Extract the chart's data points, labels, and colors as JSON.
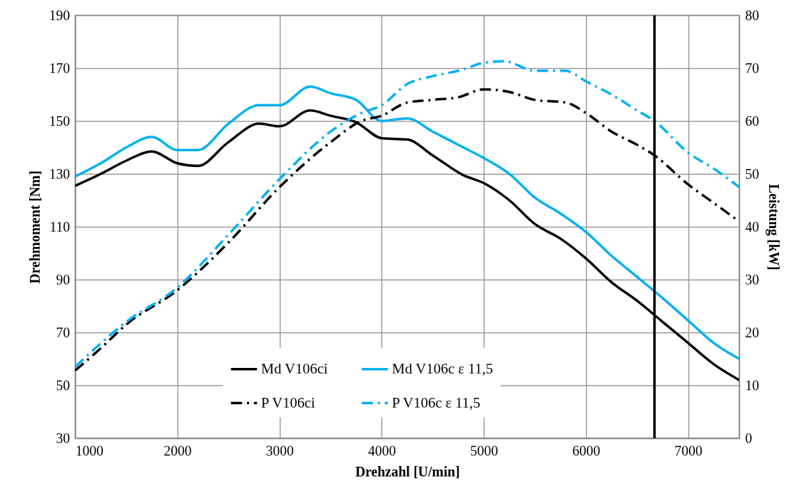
{
  "chart_data": {
    "type": "line",
    "xlabel": "Drehzahl [U/min]",
    "ylabel": "Drehmoment [Nm]",
    "y2label": "Leistung [kW]",
    "x": [
      1000,
      1250,
      1500,
      1750,
      2000,
      2200,
      2500,
      2800,
      3000,
      3300,
      3500,
      3750,
      4000,
      4250,
      4500,
      4800,
      5000,
      5250,
      5500,
      5750,
      6000,
      6250,
      6500,
      6750,
      7000,
      7250,
      7500
    ],
    "xlim": [
      1000,
      7500
    ],
    "xticks": [
      1000,
      2000,
      3000,
      4000,
      5000,
      6000,
      7000
    ],
    "ylim": [
      30,
      190
    ],
    "yticks": [
      30,
      50,
      70,
      90,
      110,
      130,
      150,
      170,
      190
    ],
    "y2lim": [
      0,
      80
    ],
    "y2ticks": [
      0,
      10,
      20,
      30,
      40,
      50,
      60,
      70,
      80
    ],
    "series": [
      {
        "name": "Md V106ci",
        "color": "#000000",
        "line_style": "solid",
        "values": [
          125.5,
          130,
          135,
          138.5,
          134,
          133,
          142,
          149,
          148,
          154,
          152,
          149.5,
          143.5,
          143,
          137,
          129.5,
          126.5,
          120,
          111,
          105.5,
          98,
          89,
          82,
          74,
          66,
          58,
          52
        ]
      },
      {
        "name": "Md V106c ε 11,5",
        "color": "#00b0f0",
        "line_style": "solid",
        "values": [
          129,
          134,
          140,
          144,
          139,
          139,
          149,
          156,
          156,
          163,
          160.5,
          158,
          150,
          151,
          146,
          140,
          136,
          130,
          121,
          115,
          108,
          99,
          91,
          83,
          74.5,
          66,
          60
        ]
      },
      {
        "name": "P V106ci",
        "color": "#000000",
        "line_style": "dashed",
        "axis": "y2",
        "x": [
          1000,
          1250,
          1500,
          2000,
          2500,
          3000,
          3500,
          3800,
          4000,
          4250,
          4500,
          4750,
          5000,
          5250,
          5500,
          5800,
          6000,
          6250,
          6500,
          6670,
          7000,
          7250,
          7500
        ],
        "values": [
          12.8,
          17,
          21.5,
          28,
          37,
          47.5,
          56,
          60,
          61,
          63.5,
          64,
          64.5,
          66,
          65.5,
          64,
          63.5,
          61.5,
          58,
          55.5,
          53.5,
          48,
          44.5,
          41
        ]
      },
      {
        "name": "P V106c  ε 11,5",
        "color": "#00b0f0",
        "line_style": "dashed",
        "axis": "y2",
        "x": [
          1000,
          1500,
          2000,
          2500,
          3000,
          3500,
          3800,
          4000,
          4250,
          4500,
          4750,
          5000,
          5200,
          5500,
          5800,
          6000,
          6250,
          6500,
          6670,
          7000,
          7250,
          7500
        ],
        "values": [
          13.5,
          22,
          28.5,
          38.5,
          49,
          58,
          61.5,
          63,
          67,
          68.5,
          69.5,
          71,
          71.3,
          69.5,
          69.5,
          67.5,
          65,
          62,
          60,
          54,
          51,
          47.5
        ]
      }
    ],
    "ref_lines": [
      {
        "axis": "x",
        "value": 6670,
        "color": "#000000"
      }
    ],
    "grid": true,
    "legend": "bottom"
  }
}
